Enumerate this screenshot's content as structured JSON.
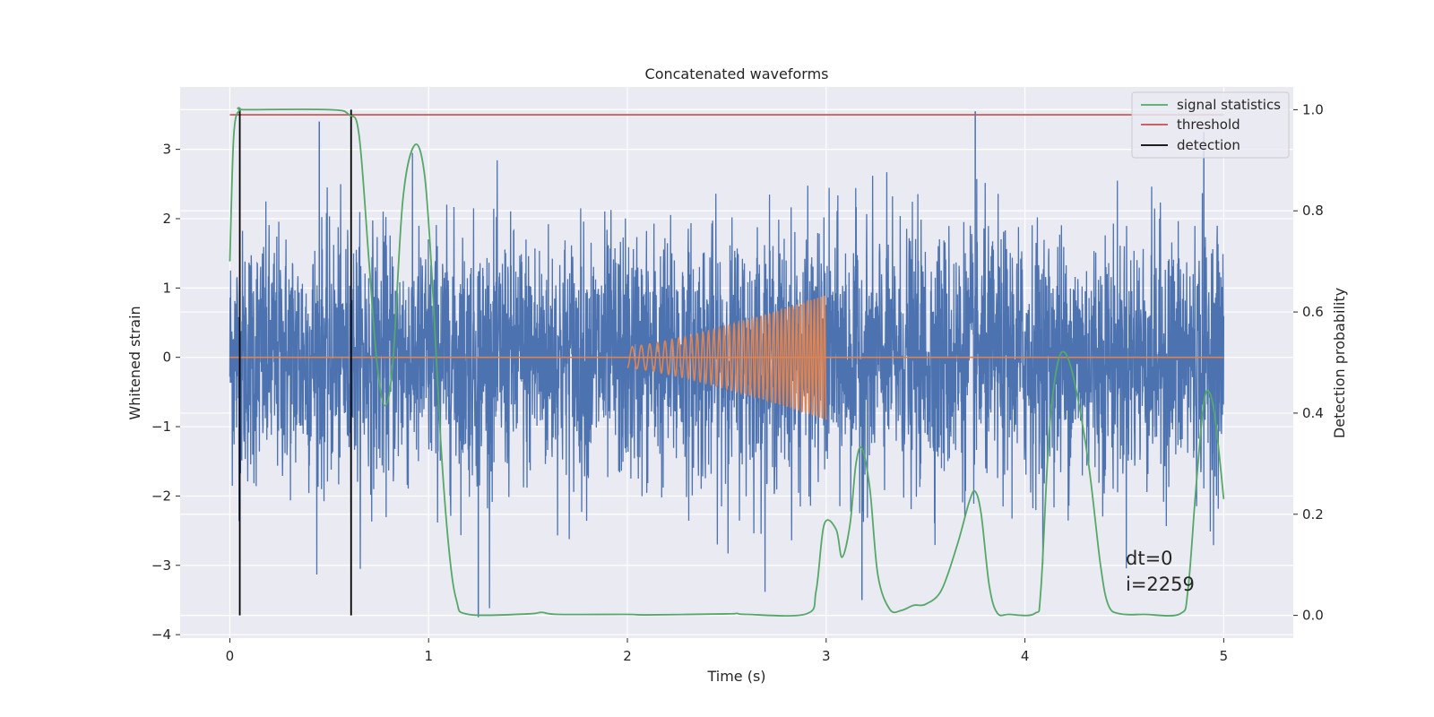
{
  "chart_data": {
    "type": "line",
    "title": "Concatenated waveforms",
    "xlabel": "Time (s)",
    "ylabel": "Whitened strain",
    "y2label": "Detection probability",
    "xlim": [
      -0.25,
      5.35
    ],
    "ylim": [
      -4.05,
      3.9
    ],
    "y2lim": [
      -0.045,
      1.045
    ],
    "xticks": [
      0,
      1,
      2,
      3,
      4,
      5
    ],
    "yticks": [
      -4,
      -3,
      -2,
      -1,
      0,
      1,
      2,
      3
    ],
    "y2ticks": [
      0.0,
      0.2,
      0.4,
      0.6,
      0.8,
      1.0
    ],
    "xtick_labels": [
      "0",
      "1",
      "2",
      "3",
      "4",
      "5"
    ],
    "ytick_labels": [
      "−4",
      "−3",
      "−2",
      "−1",
      "0",
      "1",
      "2",
      "3"
    ],
    "y2tick_labels": [
      "0.0",
      "0.2",
      "0.4",
      "0.6",
      "0.8",
      "1.0"
    ],
    "grid": true,
    "legend_position": "top-right",
    "legend": [
      "signal statistics",
      "threshold",
      "detection"
    ],
    "colors": {
      "background": "#eaeaf2",
      "grid": "#ffffff",
      "noise": "#4c72b0",
      "chirp": "#dd8452",
      "signal_statistics": "#55a868",
      "threshold": "#c44e52",
      "detection": "#000000"
    },
    "series": [
      {
        "id": "whitened_strain",
        "axis": "left",
        "x_range": [
          0,
          5
        ],
        "amplitude_band": [
          -3.75,
          3.55
        ],
        "peaks": [
          [
            3.75,
            3.55
          ],
          [
            0.45,
            3.4
          ],
          [
            1.25,
            -3.75
          ],
          [
            3.18,
            -3.5
          ],
          [
            4.9,
            3.25
          ]
        ]
      },
      {
        "id": "injected_chirp",
        "axis": "left",
        "x_range": [
          2.0,
          3.0
        ],
        "start_amplitude": 0.15,
        "end_amplitude": 0.9,
        "start_frequency_hz": 20,
        "end_frequency_hz": 60
      },
      {
        "name": "signal statistics",
        "axis": "right",
        "x": [
          0,
          0.02,
          0.05,
          0.08,
          0.5,
          0.6,
          0.65,
          0.7,
          0.74,
          0.78,
          0.82,
          0.87,
          0.93,
          0.98,
          1.02,
          1.06,
          1.1,
          1.14,
          1.2,
          1.5,
          1.57,
          1.65,
          2.0,
          2.1,
          2.5,
          2.55,
          2.6,
          2.9,
          2.95,
          2.99,
          3.05,
          3.08,
          3.12,
          3.15,
          3.18,
          3.22,
          3.26,
          3.32,
          3.38,
          3.44,
          3.5,
          3.58,
          3.66,
          3.72,
          3.75,
          3.78,
          3.82,
          3.86,
          3.92,
          4.05,
          4.08,
          4.12,
          4.16,
          4.2,
          4.25,
          4.32,
          4.38,
          4.42,
          4.48,
          4.6,
          4.78,
          4.82,
          4.86,
          4.9,
          4.93,
          4.96,
          5.0
        ],
        "values": [
          0.7,
          0.95,
          1.0,
          1.0,
          1.0,
          0.99,
          0.95,
          0.7,
          0.5,
          0.415,
          0.5,
          0.82,
          0.93,
          0.87,
          0.65,
          0.35,
          0.14,
          0.03,
          0.002,
          0.003,
          0.006,
          0.002,
          0.002,
          0.001,
          0.003,
          0.004,
          0.002,
          0.003,
          0.05,
          0.18,
          0.17,
          0.115,
          0.18,
          0.3,
          0.33,
          0.25,
          0.08,
          0.012,
          0.01,
          0.02,
          0.022,
          0.05,
          0.14,
          0.225,
          0.245,
          0.2,
          0.06,
          0.005,
          0.002,
          0.004,
          0.05,
          0.35,
          0.49,
          0.52,
          0.46,
          0.3,
          0.1,
          0.02,
          0.003,
          0.002,
          0.003,
          0.05,
          0.25,
          0.42,
          0.44,
          0.38,
          0.23
        ]
      },
      {
        "name": "threshold",
        "axis": "right",
        "x": [
          0,
          5
        ],
        "values": [
          0.99,
          0.99
        ]
      },
      {
        "name": "detection",
        "axis": "right",
        "x": [
          0.05,
          0.61
        ],
        "y_range": [
          0.0,
          1.0
        ]
      }
    ],
    "annotation_lines": [
      "dt=0",
      "i=2259"
    ]
  }
}
